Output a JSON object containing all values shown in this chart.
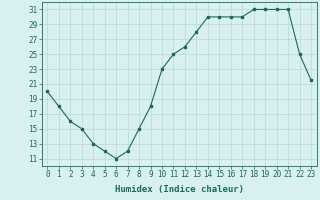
{
  "x": [
    0,
    1,
    2,
    3,
    4,
    5,
    6,
    7,
    8,
    9,
    10,
    11,
    12,
    13,
    14,
    15,
    16,
    17,
    18,
    19,
    20,
    21,
    22,
    23
  ],
  "y": [
    20,
    18,
    16,
    15,
    13,
    12,
    11,
    12,
    15,
    18,
    23,
    25,
    26,
    28,
    30,
    30,
    30,
    30,
    31,
    31,
    31,
    31,
    25,
    21.5
  ],
  "line_color": "#1a6b5a",
  "marker": "s",
  "marker_size": 1.5,
  "bg_color": "#d8f0f0",
  "grid_color": "#b8d8d8",
  "xlabel": "Humidex (Indice chaleur)",
  "xlabel_fontsize": 6.5,
  "tick_fontsize": 5.5,
  "ylim": [
    10,
    32
  ],
  "xlim": [
    -0.5,
    23.5
  ],
  "yticks": [
    11,
    13,
    15,
    17,
    19,
    21,
    23,
    25,
    27,
    29,
    31
  ],
  "xticks": [
    0,
    1,
    2,
    3,
    4,
    5,
    6,
    7,
    8,
    9,
    10,
    11,
    12,
    13,
    14,
    15,
    16,
    17,
    18,
    19,
    20,
    21,
    22,
    23
  ]
}
